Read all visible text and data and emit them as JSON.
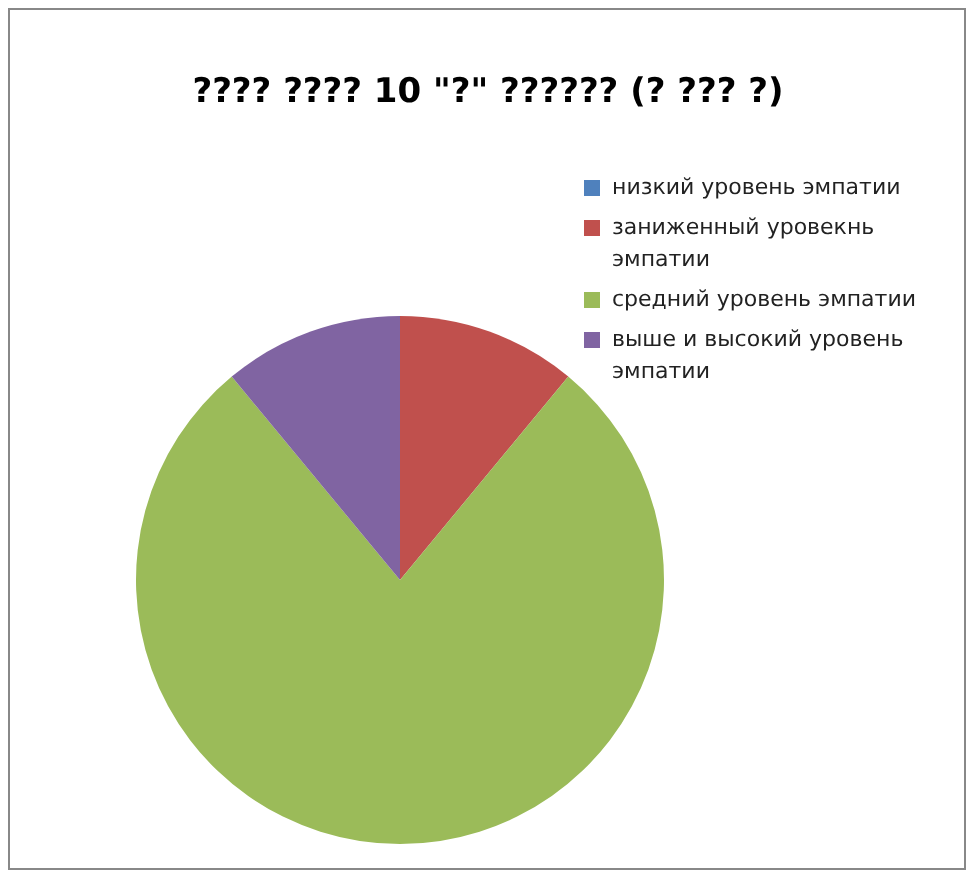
{
  "chart_data": {
    "type": "pie",
    "title": "???? ???? 10 \"?\" ?????? (? ??? ?)",
    "categories": [
      "низкий уровень эмпатии",
      "заниженный уровекнь эмпатии",
      "средний уровень эмпатии",
      "выше и высокий уровень эмпатии"
    ],
    "values": [
      0,
      11,
      78,
      11
    ],
    "colors": [
      "#4f81bd",
      "#c0504d",
      "#9bbb59",
      "#8064a2"
    ],
    "legend": "top right"
  }
}
